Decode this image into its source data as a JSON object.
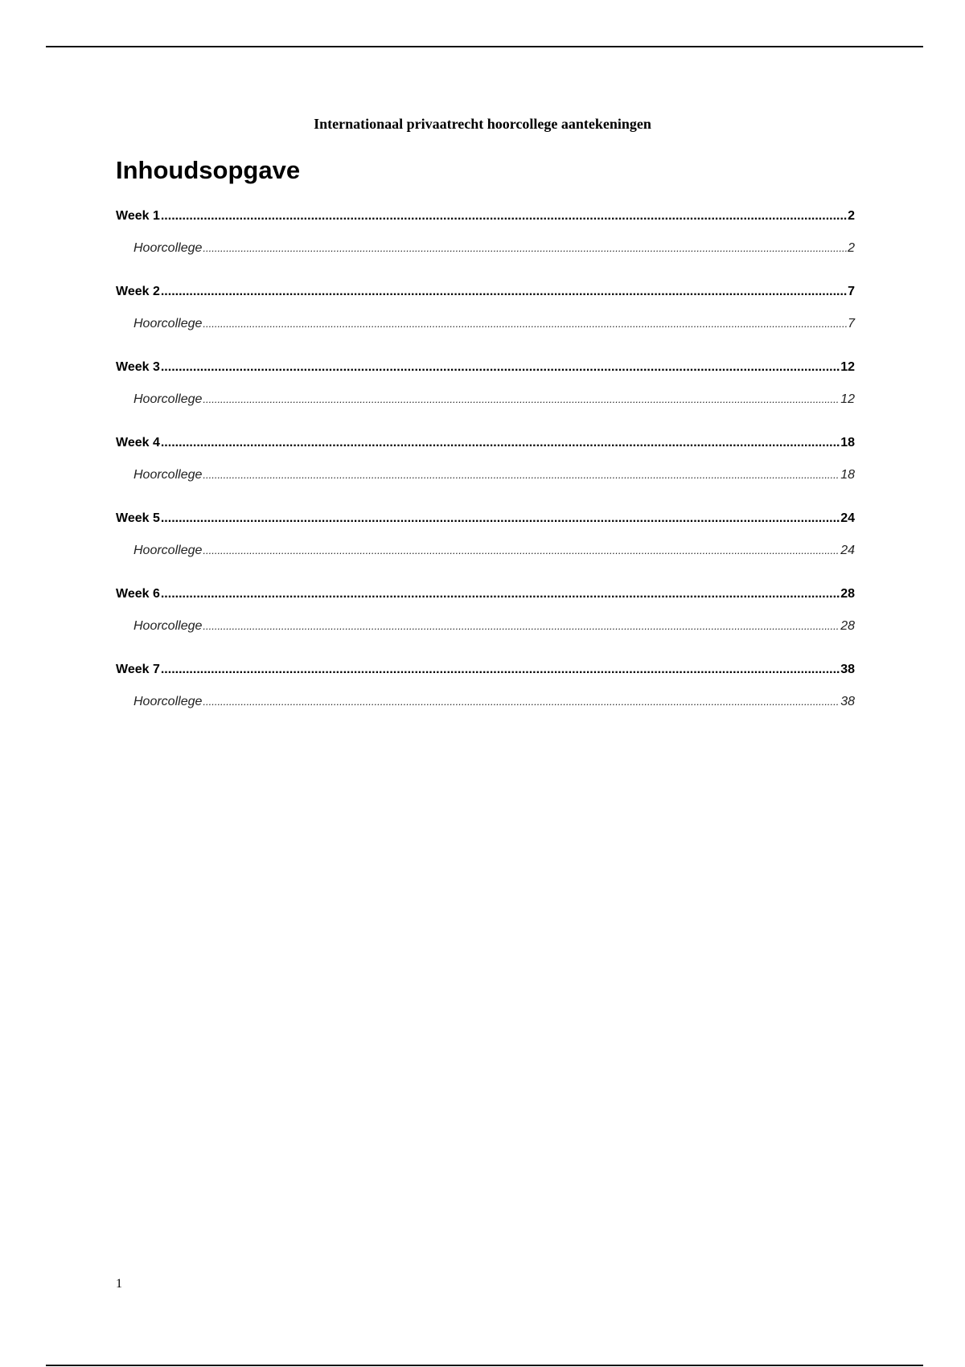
{
  "document": {
    "title": "Internationaal privaatrecht hoorcollege aantekeningen",
    "toc_heading": "Inhoudsopgave",
    "toc": [
      {
        "label": "Week 1",
        "page": "2",
        "sub": {
          "label": "Hoorcollege",
          "page": "2"
        }
      },
      {
        "label": "Week 2",
        "page": "7",
        "sub": {
          "label": "Hoorcollege",
          "page": "7"
        }
      },
      {
        "label": "Week 3",
        "page": "12",
        "sub": {
          "label": "Hoorcollege",
          "page": "12"
        }
      },
      {
        "label": "Week 4",
        "page": "18",
        "sub": {
          "label": "Hoorcollege",
          "page": "18"
        }
      },
      {
        "label": "Week 5",
        "page": "24",
        "sub": {
          "label": "Hoorcollege",
          "page": "24"
        }
      },
      {
        "label": "Week 6",
        "page": "28",
        "sub": {
          "label": "Hoorcollege",
          "page": "28"
        }
      },
      {
        "label": "Week 7",
        "page": "38",
        "sub": {
          "label": "Hoorcollege",
          "page": "38"
        }
      }
    ],
    "page_number": "1"
  }
}
